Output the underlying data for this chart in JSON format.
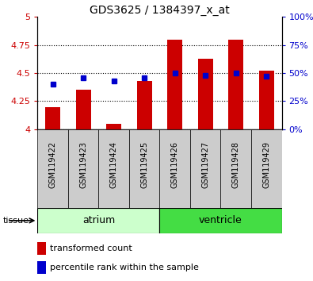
{
  "title": "GDS3625 / 1384397_x_at",
  "samples": [
    "GSM119422",
    "GSM119423",
    "GSM119424",
    "GSM119425",
    "GSM119426",
    "GSM119427",
    "GSM119428",
    "GSM119429"
  ],
  "transformed_count": [
    4.2,
    4.35,
    4.05,
    4.43,
    4.8,
    4.63,
    4.8,
    4.52
  ],
  "percentile_rank": [
    40,
    46,
    43,
    46,
    50,
    48,
    50,
    47
  ],
  "ylim_left": [
    4.0,
    5.0
  ],
  "ylim_right": [
    0,
    100
  ],
  "yticks_left": [
    4.0,
    4.25,
    4.5,
    4.75,
    5.0
  ],
  "yticks_right": [
    0,
    25,
    50,
    75,
    100
  ],
  "ytick_labels_left": [
    "4",
    "4.25",
    "4.5",
    "4.75",
    "5"
  ],
  "ytick_labels_right": [
    "0%",
    "25%",
    "50%",
    "75%",
    "100%"
  ],
  "bar_color": "#cc0000",
  "dot_color": "#0000cc",
  "tissue_groups": [
    {
      "label": "atrium",
      "start": 0,
      "end": 4,
      "color": "#ccffcc"
    },
    {
      "label": "ventricle",
      "start": 4,
      "end": 8,
      "color": "#44dd44"
    }
  ],
  "bar_width": 0.5,
  "dot_size": 5,
  "grid_linestyle": "dotted",
  "ylabel_left_color": "#cc0000",
  "ylabel_right_color": "#0000cc",
  "tissue_label": "tissue",
  "legend_labels": [
    "transformed count",
    "percentile rank within the sample"
  ]
}
